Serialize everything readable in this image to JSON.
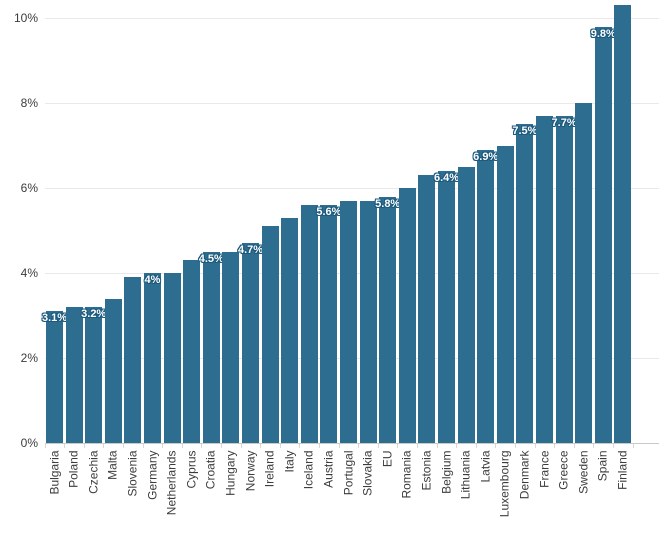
{
  "chart_data": {
    "type": "bar",
    "title": "",
    "xlabel": "",
    "ylabel": "",
    "unit": "%",
    "ylim": [
      0,
      10
    ],
    "y_ticks": [
      "0%",
      "2%",
      "4%",
      "6%",
      "8%",
      "10%"
    ],
    "grid": "horizontal",
    "legend": "none",
    "bar_color": "#2d6d8f",
    "label_outline_color": "#1c5a7d",
    "categories": [
      "Bulgaria",
      "Poland",
      "Czechia",
      "Malta",
      "Slovenia",
      "Germany",
      "Netherlands",
      "Cyprus",
      "Croatia",
      "Hungary",
      "Norway",
      "Ireland",
      "Italy",
      "Iceland",
      "Austria",
      "Portugal",
      "Slovakia",
      "EU",
      "Romania",
      "Estonia",
      "Belgium",
      "Lithuania",
      "Latvia",
      "Luxembourg",
      "Denmark",
      "France",
      "Greece",
      "Sweden",
      "Spain",
      "Finland"
    ],
    "values": [
      3.1,
      3.2,
      3.2,
      3.4,
      3.9,
      4.0,
      4.0,
      4.3,
      4.5,
      4.5,
      4.7,
      5.1,
      5.3,
      5.6,
      5.6,
      5.7,
      5.7,
      5.8,
      6.0,
      6.3,
      6.4,
      6.5,
      6.9,
      7.0,
      7.5,
      7.7,
      7.7,
      8.0,
      9.8,
      10.3
    ],
    "data_labels": [
      "3.1%",
      null,
      "3.2%",
      null,
      null,
      "4%",
      null,
      null,
      "4.5%",
      null,
      "4.7%",
      null,
      null,
      null,
      "5.6%",
      null,
      null,
      "5.8%",
      null,
      null,
      "6.4%",
      null,
      "6.9%",
      null,
      "7.5%",
      null,
      "7.7%",
      null,
      "9.8%",
      null
    ]
  }
}
